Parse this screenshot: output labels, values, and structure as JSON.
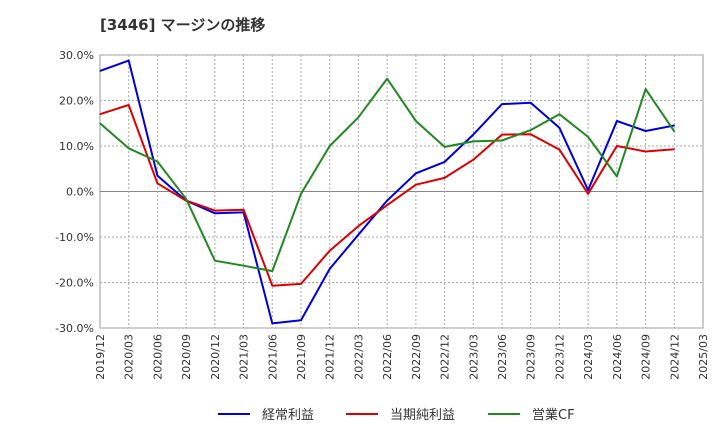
{
  "title": "[3446]  マージンの推移",
  "chart_data": {
    "type": "line",
    "title": "[3446]  マージンの推移",
    "xlabel": "",
    "ylabel": "",
    "ylim": [
      -30,
      30
    ],
    "y_ticks": [
      "30.0%",
      "20.0%",
      "10.0%",
      "0.0%",
      "-10.0%",
      "-20.0%",
      "-30.0%"
    ],
    "y_tick_values": [
      30,
      20,
      10,
      0,
      -10,
      -20,
      -30
    ],
    "x": [
      "2019/12",
      "2020/03",
      "2020/06",
      "2020/09",
      "2020/12",
      "2021/03",
      "2021/06",
      "2021/09",
      "2021/12",
      "2022/03",
      "2022/06",
      "2022/09",
      "2022/12",
      "2023/03",
      "2023/06",
      "2023/09",
      "2023/12",
      "2024/03",
      "2024/06",
      "2024/09",
      "2024/12",
      "2025/03"
    ],
    "grid": true,
    "legend_position": "bottom",
    "series": [
      {
        "name": "経常利益",
        "color": "#0000dd",
        "values": [
          26.5,
          28.8,
          3.5,
          -2.0,
          -4.8,
          -4.6,
          -29.0,
          -28.3,
          -17.0,
          -9.5,
          -2.0,
          4.0,
          6.5,
          12.5,
          19.2,
          19.5,
          14.0,
          0.3,
          15.5,
          13.3,
          14.5,
          null
        ]
      },
      {
        "name": "当期純利益",
        "color": "#dd0000",
        "values": [
          17.0,
          19.0,
          1.8,
          -2.0,
          -4.2,
          -4.0,
          -20.7,
          -20.3,
          -13.0,
          -7.6,
          -3.0,
          1.5,
          3.0,
          7.0,
          12.5,
          12.6,
          9.2,
          -0.5,
          10.0,
          8.8,
          9.3,
          null
        ]
      },
      {
        "name": "営業CF",
        "color": "#228822",
        "values": [
          15.0,
          9.5,
          6.6,
          -1.6,
          -15.2,
          -16.3,
          -17.5,
          -0.5,
          10.0,
          16.3,
          24.8,
          15.5,
          9.8,
          11.0,
          11.2,
          13.5,
          17.0,
          12.0,
          3.3,
          22.5,
          13.2,
          null
        ]
      }
    ]
  }
}
